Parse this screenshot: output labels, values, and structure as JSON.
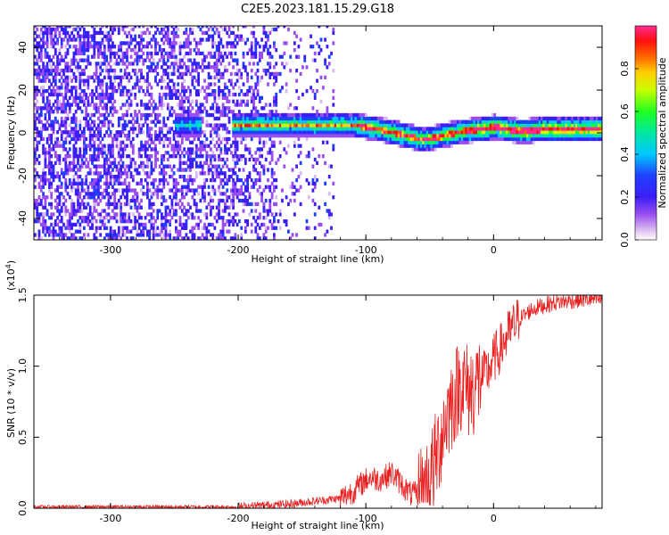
{
  "title": "C2E5.2023.181.15.29.G18",
  "chart_data": [
    {
      "type": "heatmap",
      "xlabel": "Height of straight line (km)",
      "ylabel": "Frequency (Hz)",
      "xlim": [
        -360,
        85
      ],
      "ylim": [
        -50,
        50
      ],
      "xticks": [
        -300,
        -200,
        -100,
        0
      ],
      "yticks": [
        -40,
        -20,
        0,
        20,
        40
      ],
      "ytick_labels": [
        "-40",
        "-20",
        "0",
        "20",
        "40"
      ],
      "colorbar": {
        "label": "Normalized spectral amplitude",
        "range": [
          0.0,
          1.0
        ],
        "ticks": [
          0.0,
          0.2,
          0.4,
          0.6,
          0.8
        ],
        "tick_labels": [
          "0.0",
          "0.2",
          "0.4",
          "0.6",
          "0.8"
        ]
      },
      "ridge": {
        "x": [
          -240,
          -200,
          -170,
          -140,
          -110,
          -90,
          -70,
          -55,
          -40,
          -25,
          -10,
          0,
          20,
          40,
          60,
          85
        ],
        "y": [
          3,
          3,
          3,
          3,
          3,
          1,
          -2,
          -4,
          -2,
          0,
          1,
          2,
          0,
          1,
          1,
          1
        ]
      }
    },
    {
      "type": "line",
      "xlabel": "Height of straight line (km)",
      "ylabel": "SNR (10 * v/v)",
      "y_multiplier": "(x10",
      "y_multiplier_exp": "4",
      "y_multiplier_close": ")",
      "xlim": [
        -360,
        85
      ],
      "ylim": [
        0,
        1.5
      ],
      "xticks": [
        -300,
        -200,
        -100,
        0
      ],
      "yticks": [
        0.0,
        0.5,
        1.0,
        1.5
      ],
      "ytick_labels": [
        "0.0",
        "0.5",
        "1.0",
        "1.5"
      ],
      "color": "#e82020",
      "series": [
        {
          "x": [
            -360,
            -300,
            -250,
            -200,
            -180,
            -160,
            -140,
            -120,
            -110,
            -100,
            -95,
            -90,
            -85,
            -80,
            -75,
            -70,
            -65,
            -60,
            -55,
            -50,
            -45,
            -40,
            -35,
            -30,
            -25,
            -20,
            -15,
            -10,
            -5,
            0,
            5,
            10,
            15,
            20,
            30,
            40,
            50,
            60,
            70,
            80,
            85
          ],
          "y": [
            0.01,
            0.01,
            0.01,
            0.01,
            0.02,
            0.03,
            0.05,
            0.07,
            0.12,
            0.2,
            0.22,
            0.2,
            0.22,
            0.25,
            0.2,
            0.15,
            0.1,
            0.1,
            0.12,
            0.2,
            0.35,
            0.55,
            0.7,
            0.8,
            0.9,
            0.82,
            0.85,
            0.92,
            0.95,
            1.05,
            1.12,
            1.2,
            1.27,
            1.33,
            1.4,
            1.43,
            1.45,
            1.46,
            1.47,
            1.47,
            1.47
          ]
        }
      ]
    }
  ]
}
